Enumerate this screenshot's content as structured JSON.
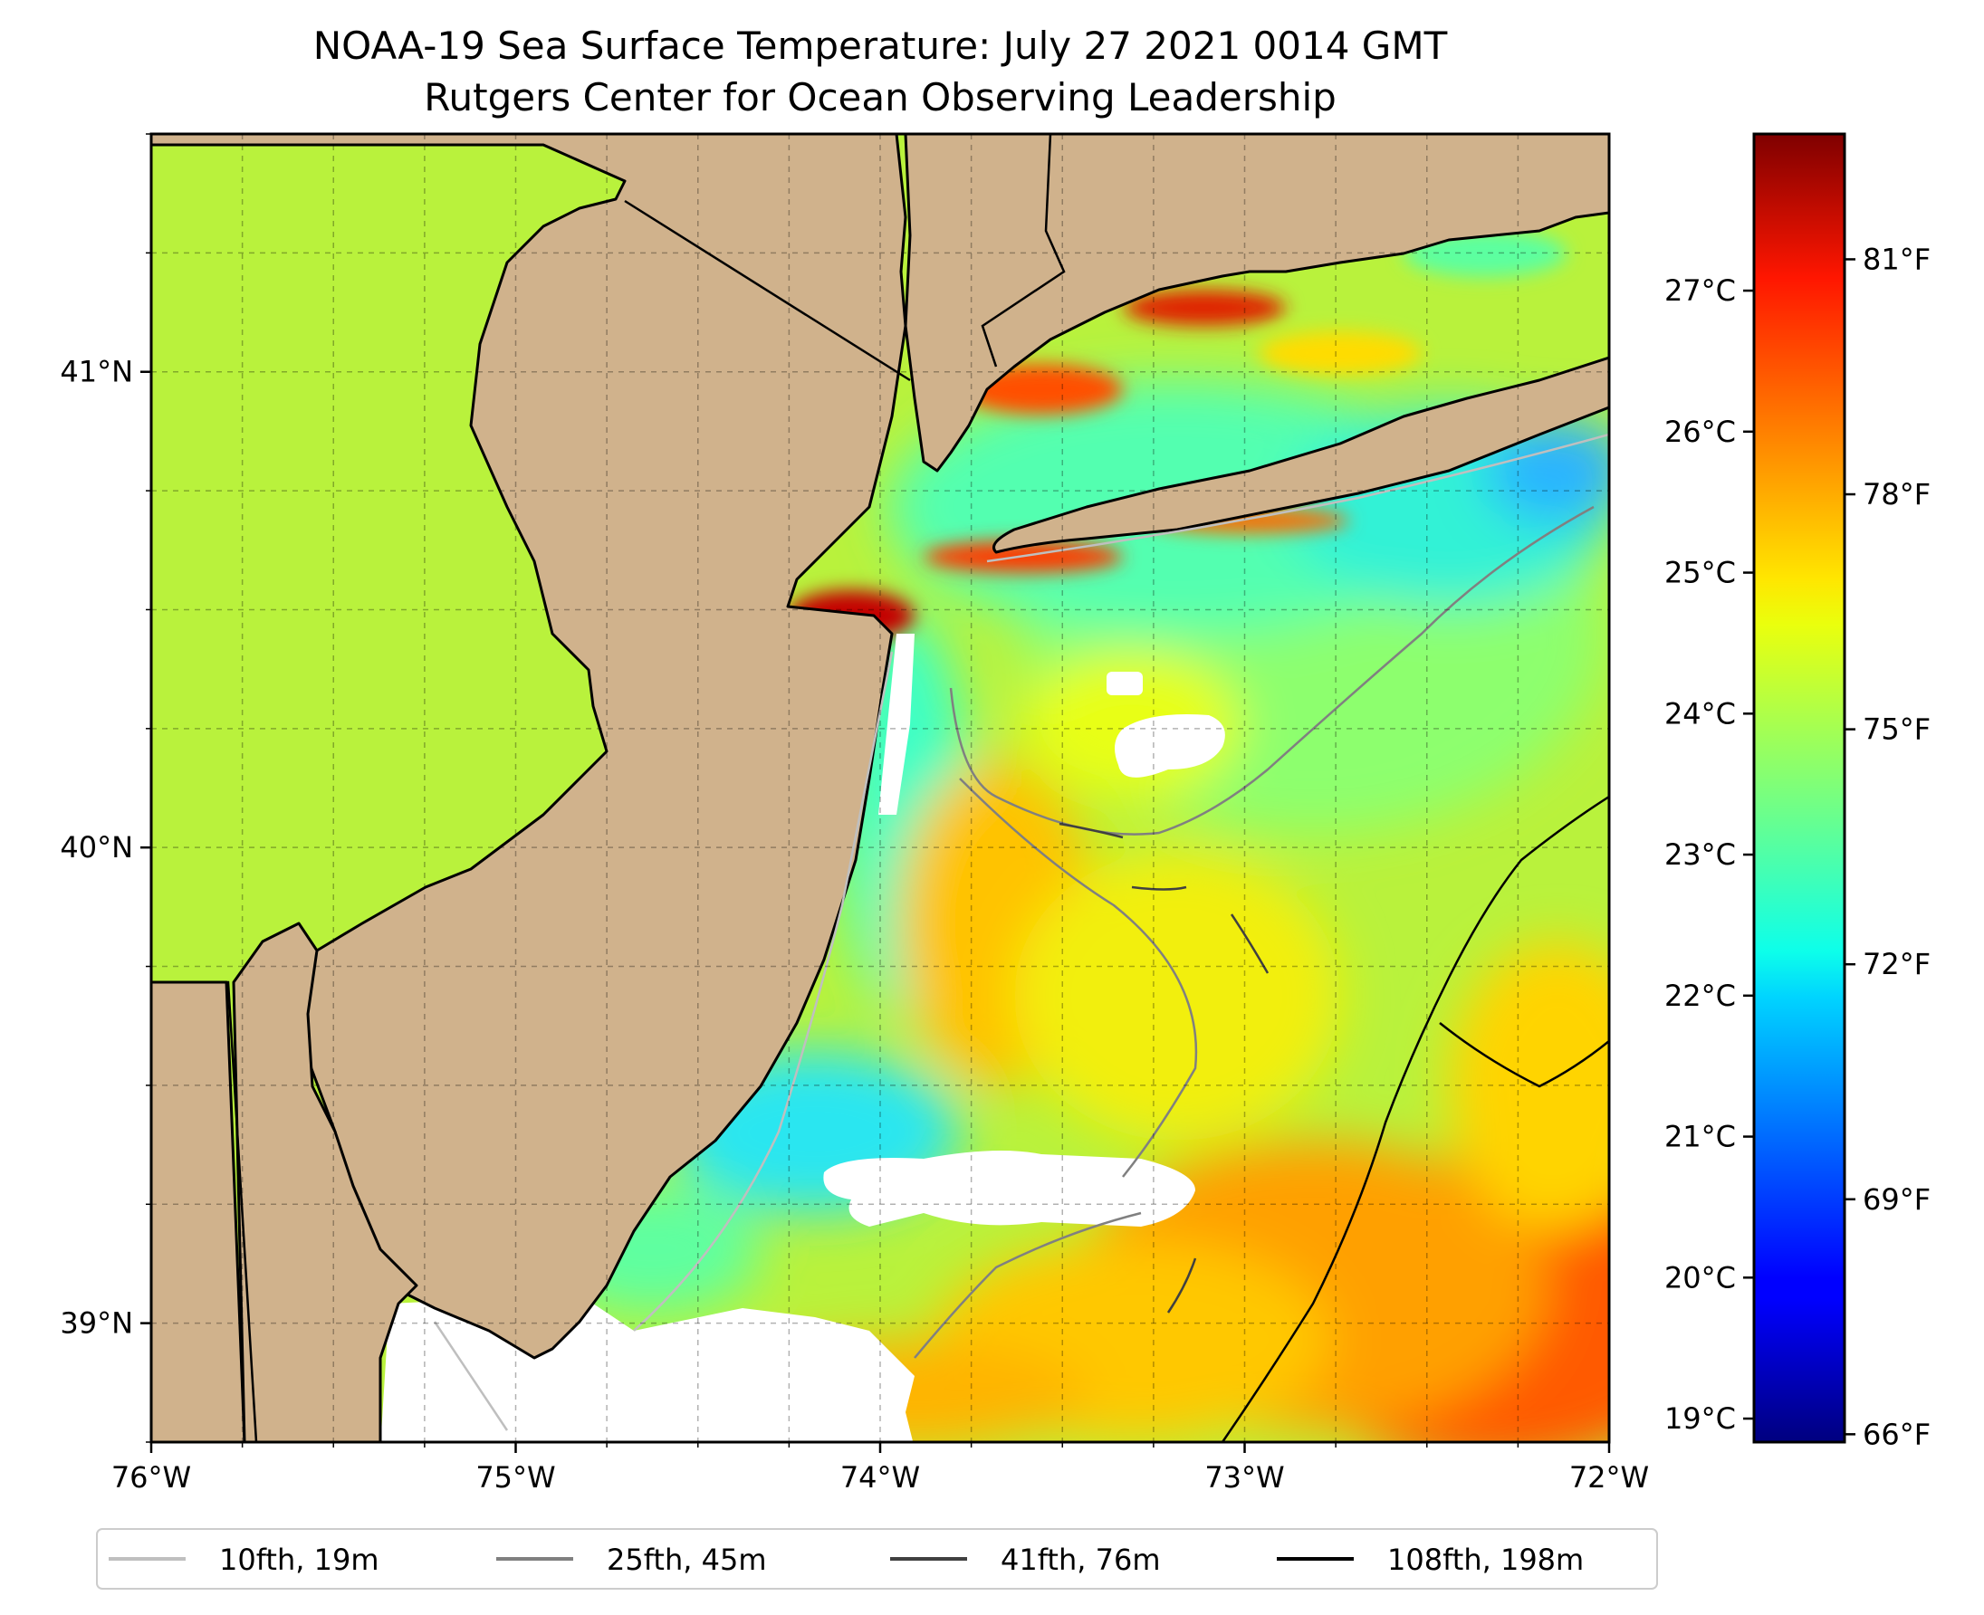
{
  "title": {
    "line1": "NOAA-19 Sea Surface Temperature: July 27 2021 0014 GMT",
    "line2": "Rutgers Center for Ocean Observing Leadership"
  },
  "map": {
    "extent": {
      "lon_min": -76.0,
      "lon_max": -72.0,
      "lat_min": 38.75,
      "lat_max": 41.5
    },
    "lon_ticks": [
      {
        "value": -76,
        "label": "76°W"
      },
      {
        "value": -75,
        "label": "75°W"
      },
      {
        "value": -74,
        "label": "74°W"
      },
      {
        "value": -73,
        "label": "73°W"
      },
      {
        "value": -72,
        "label": "72°W"
      }
    ],
    "lat_ticks": [
      {
        "value": 39,
        "label": "39°N"
      },
      {
        "value": 40,
        "label": "40°N"
      },
      {
        "value": 41,
        "label": "41°N"
      }
    ],
    "gridlines": true,
    "land_color": "#d0b28c",
    "nodata_color": "#ffffff"
  },
  "colorbar": {
    "colormap": "jet",
    "celsius_ticks": [
      {
        "value": 19,
        "label": "19°C"
      },
      {
        "value": 20,
        "label": "20°C"
      },
      {
        "value": 21,
        "label": "21°C"
      },
      {
        "value": 22,
        "label": "22°C"
      },
      {
        "value": 23,
        "label": "23°C"
      },
      {
        "value": 24,
        "label": "24°C"
      },
      {
        "value": 25,
        "label": "25°C"
      },
      {
        "value": 26,
        "label": "26°C"
      },
      {
        "value": 27,
        "label": "27°C"
      }
    ],
    "fahrenheit_ticks": [
      {
        "value": 66,
        "label": "66°F"
      },
      {
        "value": 69,
        "label": "69°F"
      },
      {
        "value": 72,
        "label": "72°F"
      },
      {
        "value": 75,
        "label": "75°F"
      },
      {
        "value": 78,
        "label": "78°F"
      },
      {
        "value": 81,
        "label": "81°F"
      }
    ],
    "range_f": [
      65.9,
      82.6
    ]
  },
  "legend": {
    "placement": "bottom-center",
    "items": [
      {
        "label": "10fth, 19m",
        "color": "#bfbfbf"
      },
      {
        "label": "25fth, 45m",
        "color": "#808080"
      },
      {
        "label": "41fth, 76m",
        "color": "#404040"
      },
      {
        "label": "108fth, 198m",
        "color": "#000000"
      }
    ]
  }
}
